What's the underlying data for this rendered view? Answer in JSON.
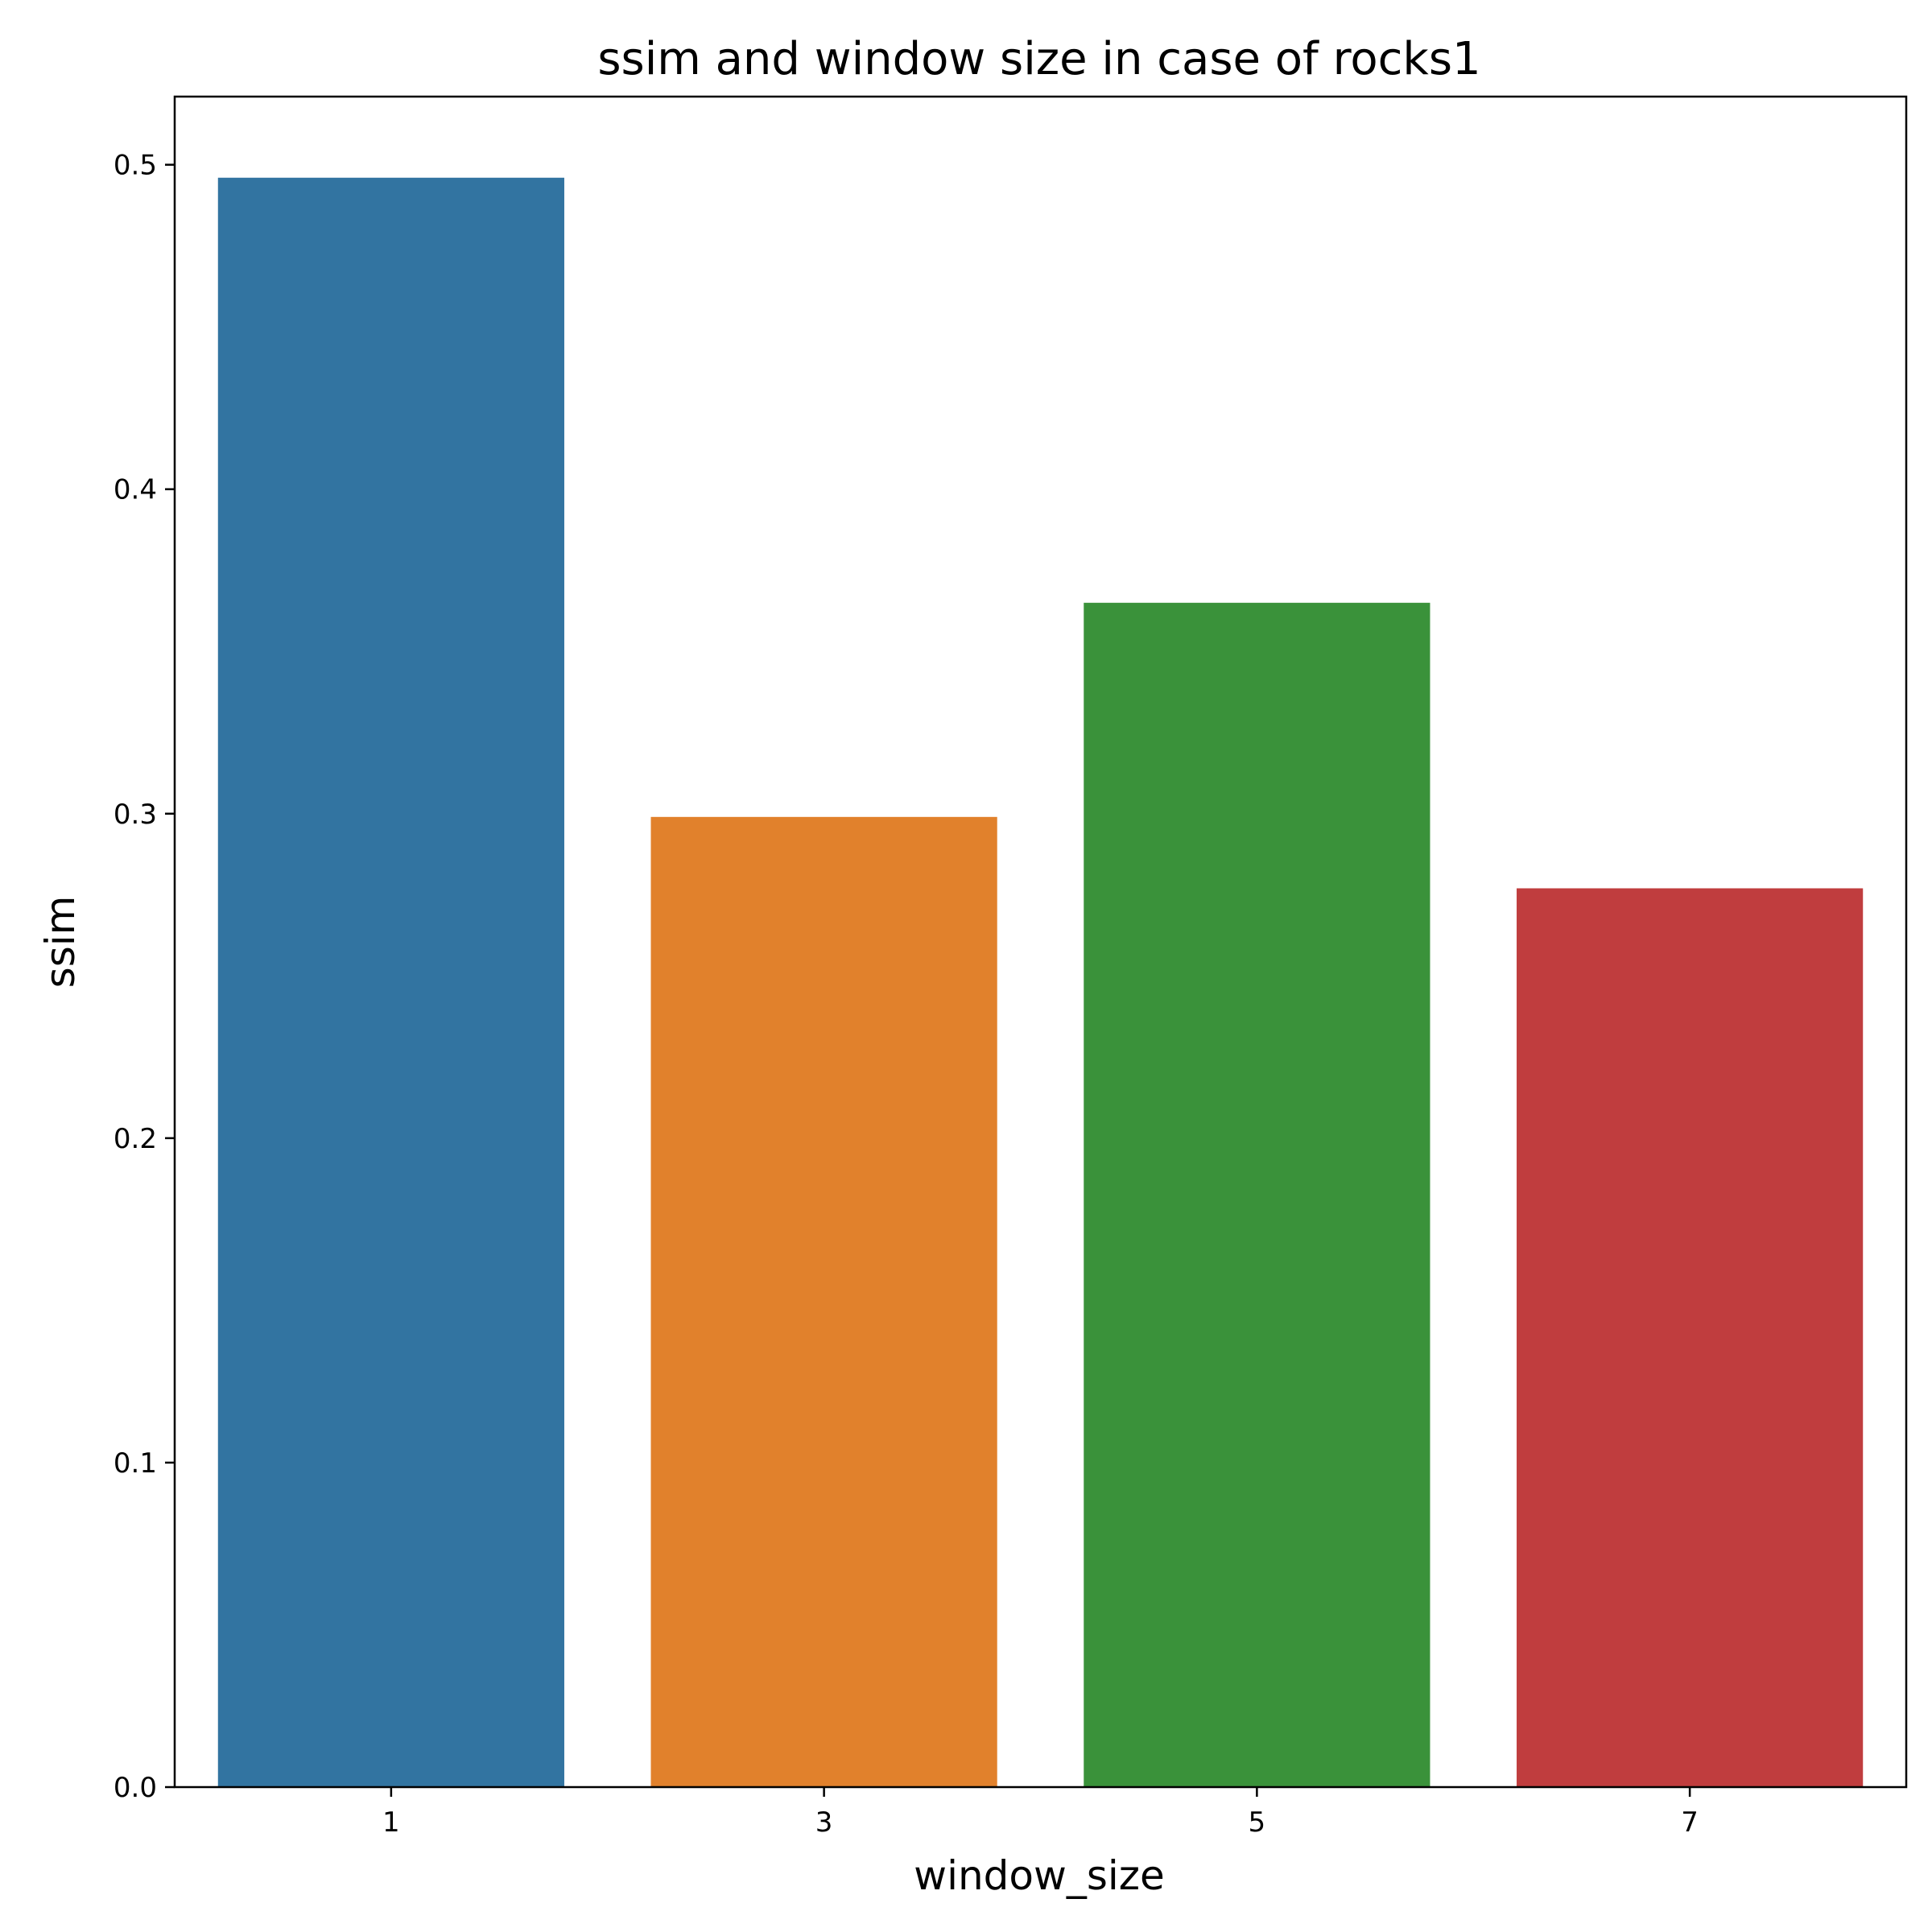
{
  "chart_data": {
    "type": "bar",
    "title": "ssim and window size in case of rocks1",
    "xlabel": "window_size",
    "ylabel": "ssim",
    "categories": [
      "1",
      "3",
      "5",
      "7"
    ],
    "values": [
      0.496,
      0.299,
      0.365,
      0.277
    ],
    "colors": [
      "#3274a1",
      "#e1812c",
      "#3a923a",
      "#c03d3e"
    ],
    "ylim": [
      0,
      0.521
    ],
    "yticks": [
      0.0,
      0.1,
      0.2,
      0.3,
      0.4,
      0.5
    ],
    "ytick_labels": [
      "0.0",
      "0.1",
      "0.2",
      "0.3",
      "0.4",
      "0.5"
    ],
    "grid": false,
    "legend": "none"
  }
}
